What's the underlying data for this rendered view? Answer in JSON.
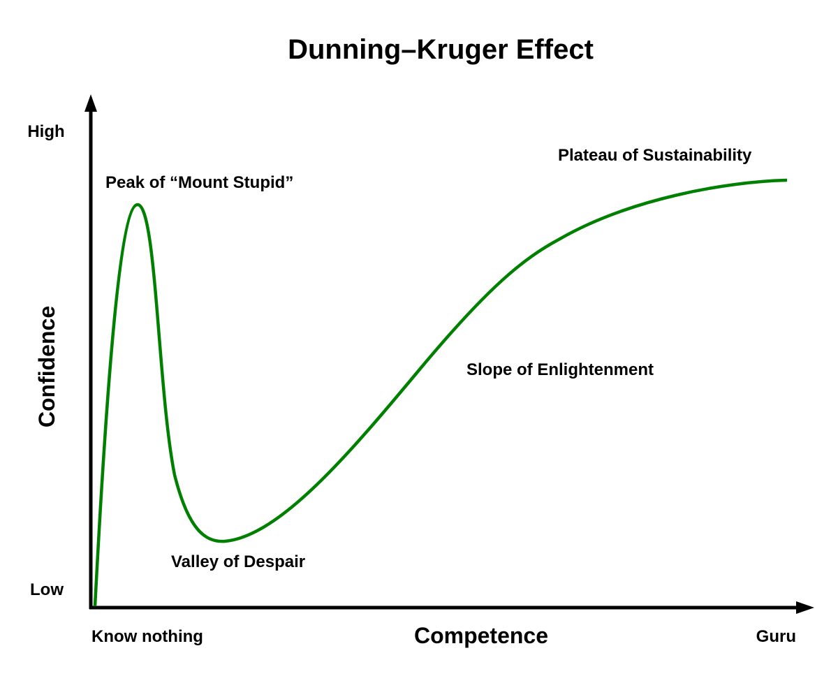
{
  "title": "Dunning–Kruger Effect",
  "y_axis": {
    "label": "Confidence",
    "low": "Low",
    "high": "High"
  },
  "x_axis": {
    "label": "Competence",
    "start": "Know nothing",
    "end": "Guru"
  },
  "annotations": {
    "peak": "Peak of “Mount Stupid”",
    "valley": "Valley of Despair",
    "slope": "Slope of Enlightenment",
    "plateau": "Plateau of Sustainability"
  },
  "colors": {
    "curve": "#008000",
    "axes": "#000000"
  }
}
